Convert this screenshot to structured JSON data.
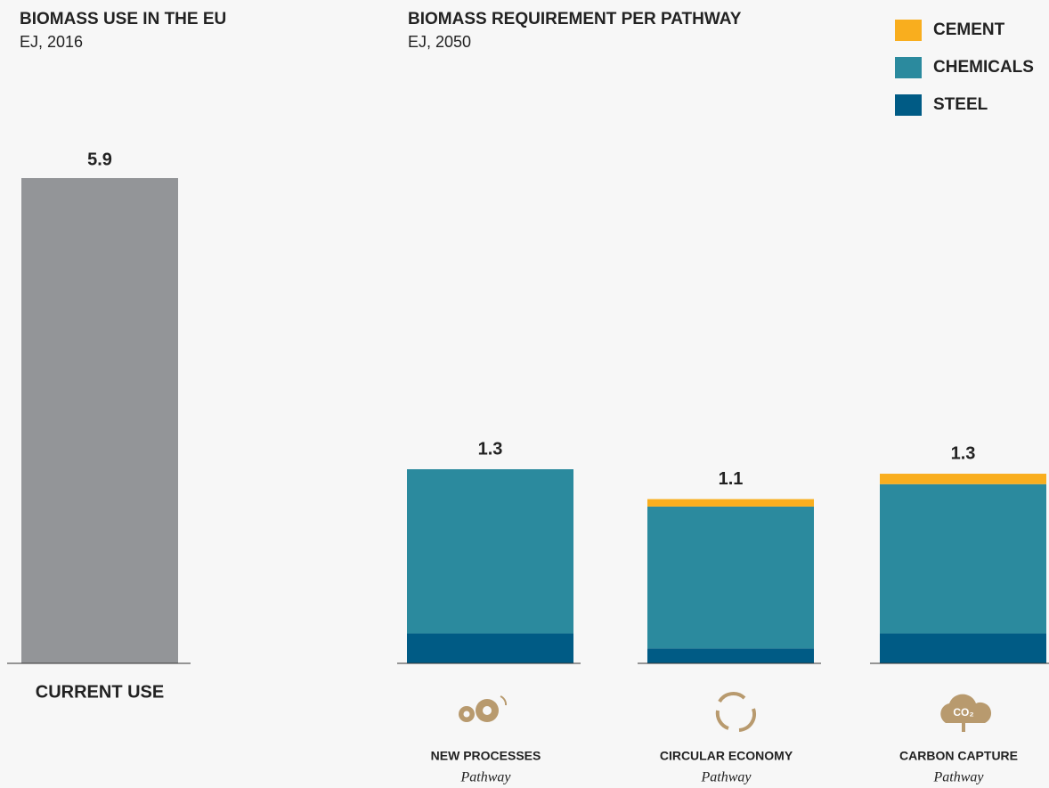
{
  "chart_data": [
    {
      "type": "bar",
      "title": "BIOMASS USE IN THE EU",
      "subtitle": "EJ, 2016",
      "categories": [
        "CURRENT USE"
      ],
      "values": [
        5.9
      ],
      "color": "#939598",
      "ylim": [
        0,
        5.9
      ]
    },
    {
      "type": "stacked-bar",
      "title": "BIOMASS REQUIREMENT PER PATHWAY",
      "subtitle": "EJ, 2050",
      "categories": [
        "NEW PROCESSES",
        "CIRCULAR ECONOMY",
        "CARBON CAPTURE"
      ],
      "category_sublabels": [
        "Pathway",
        "Pathway",
        "Pathway"
      ],
      "series": [
        {
          "name": "STEEL",
          "color": "#005b85",
          "values": [
            0.2,
            0.1,
            0.2
          ]
        },
        {
          "name": "CHEMICALS",
          "color": "#2b8a9e",
          "values": [
            1.1,
            0.95,
            1.0
          ]
        },
        {
          "name": "CEMENT",
          "color": "#f9ae1e",
          "values": [
            0,
            0.05,
            0.07
          ]
        }
      ],
      "totals": [
        1.3,
        1.1,
        1.3
      ],
      "ylim": [
        0,
        3.25
      ]
    }
  ]
}
